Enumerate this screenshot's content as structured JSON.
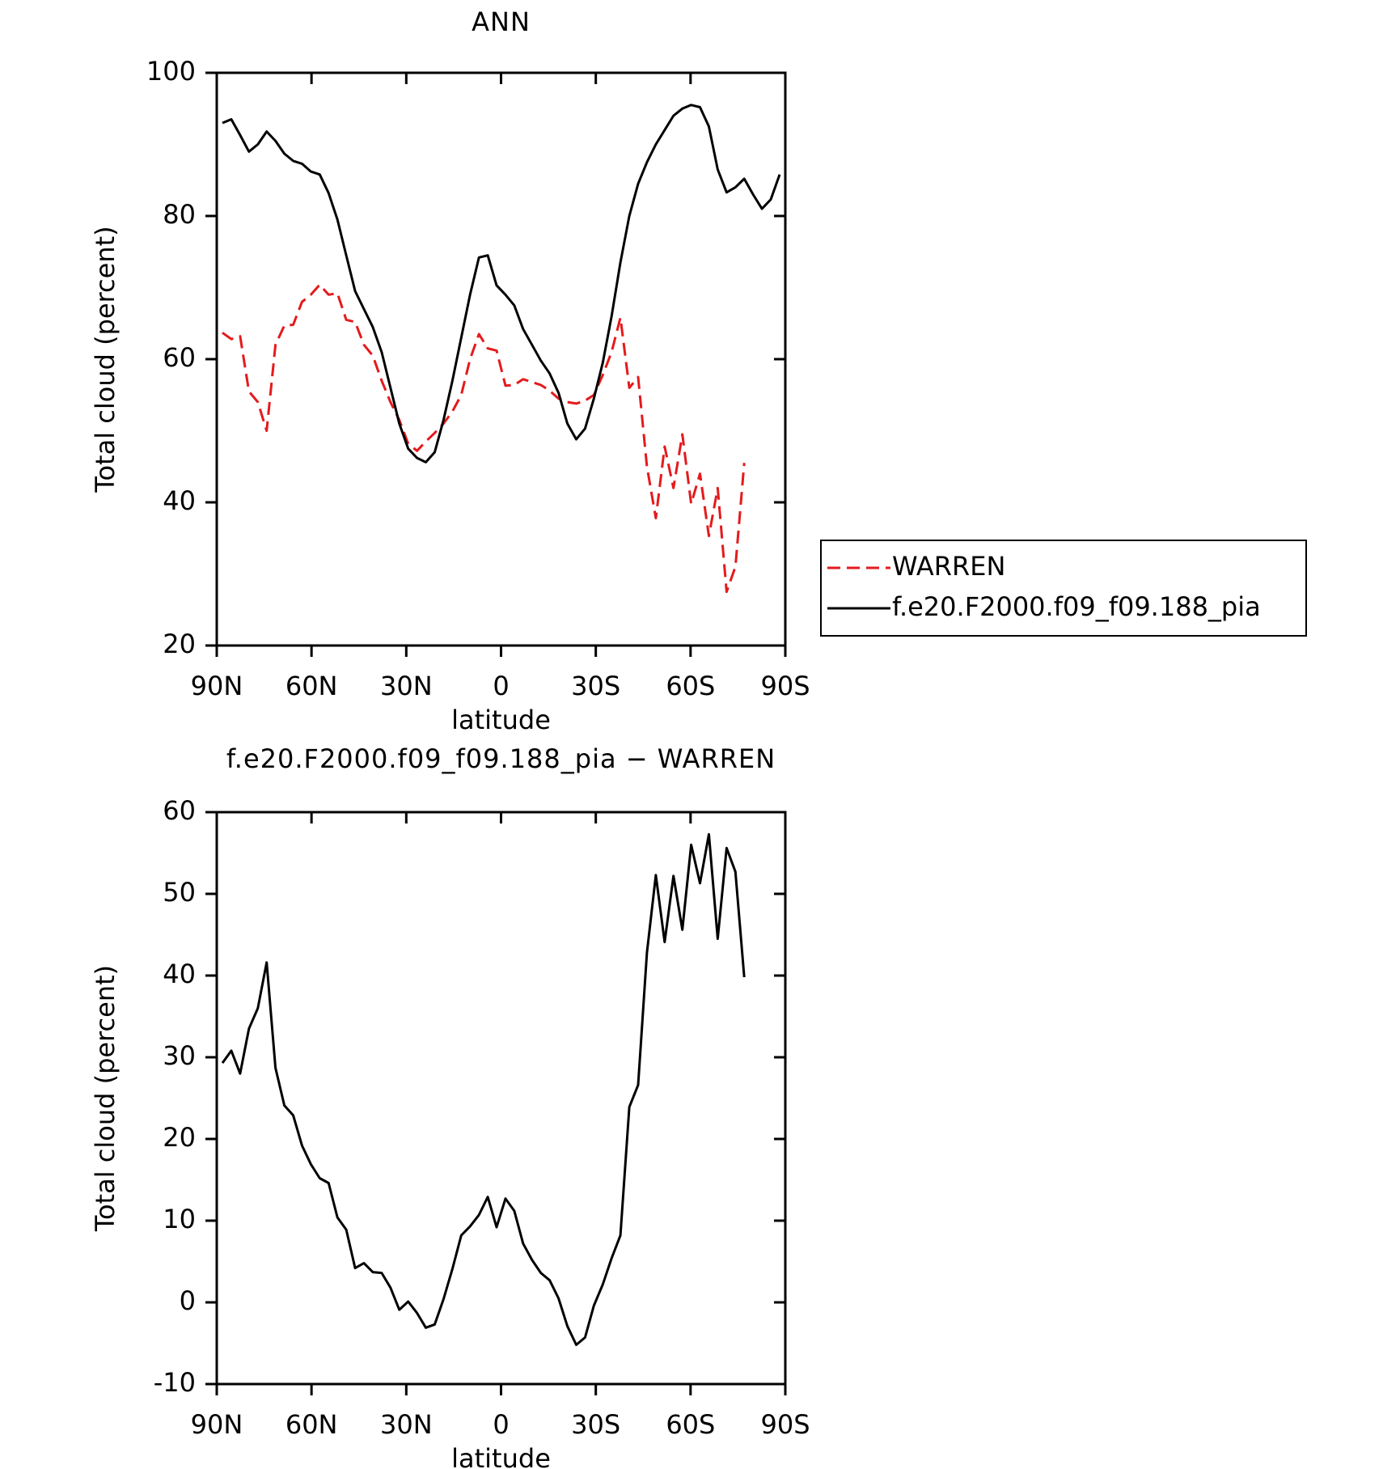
{
  "chart_data": [
    {
      "type": "line",
      "title": "ANN",
      "x_label": "latitude",
      "y_label": "Total cloud (percent)",
      "x": [
        88.2,
        85.4,
        82.6,
        79.8,
        77,
        74.2,
        71.4,
        68.6,
        65.8,
        63,
        60.2,
        57.4,
        54.6,
        51.8,
        49,
        46.2,
        43.4,
        40.6,
        37.8,
        35,
        32.2,
        29.4,
        26.6,
        23.8,
        21,
        18.2,
        15.4,
        12.6,
        9.8,
        7,
        4.2,
        1.4,
        -1.4,
        -4.2,
        -7,
        -9.8,
        -12.6,
        -15.4,
        -18.2,
        -21,
        -23.8,
        -26.6,
        -29.4,
        -32.2,
        -35,
        -37.8,
        -40.6,
        -43.4,
        -46.2,
        -49,
        -51.8,
        -54.6,
        -57.4,
        -60.2,
        -63,
        -65.8,
        -68.6,
        -71.4,
        -74.2,
        -77,
        -79.8,
        -82.6,
        -85.4,
        -88.2
      ],
      "series": [
        {
          "name": "WARREN",
          "color": "#e41a1c",
          "dashed": true,
          "values": [
            63.7,
            62.8,
            63.2,
            55.5,
            54,
            50,
            62,
            64.7,
            64.8,
            68,
            69,
            70.4,
            69,
            69.2,
            65.5,
            65.2,
            62,
            60.5,
            57,
            54,
            51.5,
            48.2,
            47.2,
            48.5,
            49.7,
            51,
            52.7,
            55,
            60,
            63.5,
            61.5,
            61.2,
            56.3,
            56.4,
            57.2,
            56.8,
            56.4,
            55.6,
            54.5,
            54,
            53.8,
            54.2,
            55,
            57.8,
            61,
            65.8,
            56,
            57.5,
            45,
            37.8,
            47.8,
            42,
            49.5,
            39.8,
            44,
            35.3,
            42,
            27.5,
            31,
            45.5,
            null,
            null,
            null,
            null
          ]
        },
        {
          "name": "f.e20.F2000.f09_f09.188_pia",
          "color": "#000000",
          "dashed": false,
          "values": [
            93,
            93.5,
            91.3,
            89,
            90,
            91.8,
            90.5,
            88.7,
            87.7,
            87.3,
            86.2,
            85.8,
            83.2,
            79.5,
            74.5,
            69.5,
            67,
            64.5,
            61,
            56,
            51,
            47.5,
            46.2,
            45.6,
            47,
            51.5,
            57,
            63,
            69,
            74.2,
            74.5,
            70.3,
            69,
            67.5,
            64.2,
            62,
            59.8,
            58,
            55.3,
            51,
            48.8,
            50.3,
            54.5,
            59.5,
            66,
            73.5,
            80,
            84.5,
            87.5,
            90,
            92,
            94,
            95,
            95.5,
            95.2,
            92.5,
            86.5,
            83.3,
            84,
            85.2,
            83,
            81,
            82.3,
            85.8
          ]
        }
      ],
      "xlim": [
        90,
        -90
      ],
      "xticks": [
        {
          "value": 90,
          "label": "90N"
        },
        {
          "value": 60,
          "label": "60N"
        },
        {
          "value": 30,
          "label": "30N"
        },
        0,
        {
          "value": -30,
          "label": "30S"
        },
        {
          "value": -60,
          "label": "60S"
        },
        {
          "value": -90,
          "label": "90S"
        }
      ],
      "ylim": [
        20,
        100
      ],
      "yticks": [
        20,
        40,
        60,
        80,
        100
      ],
      "legend": "right"
    },
    {
      "type": "line",
      "title": "f.e20.F2000.f09_f09.188_pia − WARREN",
      "x_label": "latitude",
      "y_label": "Total cloud (percent)",
      "x": [
        88.2,
        85.4,
        82.6,
        79.8,
        77,
        74.2,
        71.4,
        68.6,
        65.8,
        63,
        60.2,
        57.4,
        54.6,
        51.8,
        49,
        46.2,
        43.4,
        40.6,
        37.8,
        35,
        32.2,
        29.4,
        26.6,
        23.8,
        21,
        18.2,
        15.4,
        12.6,
        9.8,
        7,
        4.2,
        1.4,
        -1.4,
        -4.2,
        -7,
        -9.8,
        -12.6,
        -15.4,
        -18.2,
        -21,
        -23.8,
        -26.6,
        -29.4,
        -32.2,
        -35,
        -37.8,
        -40.6,
        -43.4,
        -46.2,
        -49,
        -51.8,
        -54.6,
        -57.4,
        -60.2,
        -63,
        -65.8,
        -68.6,
        -71.4,
        -74.2,
        -77,
        -79.8,
        -82.6,
        -85.4,
        -88.2
      ],
      "color": "#000000",
      "values": [
        29.3,
        30.8,
        28,
        33.5,
        36,
        41.6,
        28.7,
        24.1,
        22.9,
        19.2,
        16.9,
        15.2,
        14.6,
        10.4,
        8.9,
        4.2,
        4.8,
        3.7,
        3.6,
        1.8,
        -0.9,
        0.1,
        -1.3,
        -3.1,
        -2.7,
        0.4,
        4.1,
        8.2,
        9.3,
        10.7,
        12.9,
        9.2,
        12.7,
        11.2,
        7.2,
        5.2,
        3.6,
        2.7,
        0.5,
        -2.9,
        -5.2,
        -4.3,
        -0.4,
        2.2,
        5.4,
        8.2,
        23.9,
        26.6,
        42.8,
        52.3,
        44.1,
        52.2,
        45.6,
        56,
        51.3,
        57.3,
        44.5,
        55.6,
        52.7,
        39.8,
        null,
        null,
        null,
        null
      ],
      "xlim": [
        90,
        -90
      ],
      "xticks": [
        {
          "value": 90,
          "label": "90N"
        },
        {
          "value": 60,
          "label": "60N"
        },
        {
          "value": 30,
          "label": "30N"
        },
        0,
        {
          "value": -30,
          "label": "30S"
        },
        {
          "value": -60,
          "label": "60S"
        },
        {
          "value": -90,
          "label": "90S"
        }
      ],
      "ylim": [
        -10,
        60
      ],
      "yticks": [
        -10,
        0,
        10,
        20,
        30,
        40,
        50,
        60
      ]
    }
  ]
}
